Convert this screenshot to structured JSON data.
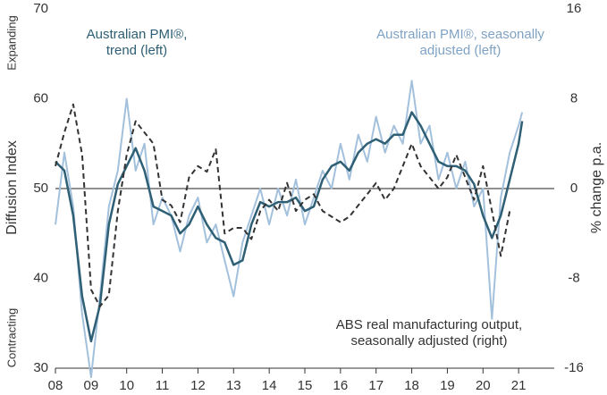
{
  "chart_data": {
    "type": "line",
    "y_label": "Diffusion Index",
    "y2_label": "% change p.a.",
    "annotations": [
      "Expanding",
      "Contracting"
    ],
    "xlim": [
      2008,
      2022
    ],
    "xticks": [
      {
        "value": 2008,
        "label": "08"
      },
      {
        "value": 2009,
        "label": "09"
      },
      {
        "value": 2010,
        "label": "10"
      },
      {
        "value": 2011,
        "label": "11"
      },
      {
        "value": 2012,
        "label": "12"
      },
      {
        "value": 2013,
        "label": "13"
      },
      {
        "value": 2014,
        "label": "14"
      },
      {
        "value": 2015,
        "label": "15"
      },
      {
        "value": 2016,
        "label": "16"
      },
      {
        "value": 2017,
        "label": "17"
      },
      {
        "value": 2018,
        "label": "18"
      },
      {
        "value": 2019,
        "label": "19"
      },
      {
        "value": 2020,
        "label": "20"
      },
      {
        "value": 2021,
        "label": "21"
      }
    ],
    "ylim": [
      30,
      70
    ],
    "yticks": [
      30,
      40,
      50,
      60,
      70
    ],
    "y2lim": [
      -16,
      16
    ],
    "y2ticks": [
      -16,
      -8,
      0,
      8,
      16
    ],
    "reference_line": 50,
    "series": [
      {
        "name": "Australian PMI®, seasonally adjusted (left)",
        "color": "#a3c1dc",
        "axis": "y",
        "x": [
          2008,
          2008.25,
          2008.5,
          2008.75,
          2009,
          2009.25,
          2009.5,
          2009.75,
          2010,
          2010.25,
          2010.5,
          2010.75,
          2011,
          2011.25,
          2011.5,
          2011.75,
          2012,
          2012.25,
          2012.5,
          2012.75,
          2013,
          2013.25,
          2013.5,
          2013.75,
          2014,
          2014.25,
          2014.5,
          2014.75,
          2015,
          2015.25,
          2015.5,
          2015.75,
          2016,
          2016.25,
          2016.5,
          2016.75,
          2017,
          2017.25,
          2017.5,
          2017.75,
          2018,
          2018.25,
          2018.5,
          2018.75,
          2019,
          2019.25,
          2019.5,
          2019.75,
          2020,
          2020.25,
          2020.5,
          2020.75,
          2021,
          2021.1
        ],
        "values": [
          46,
          54,
          48,
          36,
          29,
          38,
          48,
          52,
          60,
          52,
          55,
          46,
          49,
          47,
          43,
          47,
          49,
          44,
          46,
          42,
          38,
          44,
          47,
          50,
          46,
          50,
          47,
          51,
          46,
          49,
          52,
          50,
          55,
          51,
          56,
          53,
          58,
          54,
          57,
          55,
          62,
          55,
          57,
          51,
          54,
          50,
          53,
          48,
          50,
          35.5,
          49,
          54,
          57,
          58.5
        ]
      },
      {
        "name": "Australian PMI®, trend (left)",
        "color": "#2e5f74",
        "axis": "y",
        "x": [
          2008,
          2008.25,
          2008.5,
          2008.75,
          2009,
          2009.25,
          2009.5,
          2009.75,
          2010,
          2010.25,
          2010.5,
          2010.75,
          2011,
          2011.25,
          2011.5,
          2011.75,
          2012,
          2012.25,
          2012.5,
          2012.75,
          2013,
          2013.25,
          2013.5,
          2013.75,
          2014,
          2014.25,
          2014.5,
          2014.75,
          2015,
          2015.25,
          2015.5,
          2015.75,
          2016,
          2016.25,
          2016.5,
          2016.75,
          2017,
          2017.25,
          2017.5,
          2017.75,
          2018,
          2018.25,
          2018.5,
          2018.75,
          2019,
          2019.25,
          2019.5,
          2019.75,
          2020,
          2020.25,
          2020.5,
          2020.75,
          2021,
          2021.1
        ],
        "values": [
          53,
          52,
          47,
          38,
          33,
          37,
          46,
          50.5,
          52.5,
          54.5,
          52,
          48,
          47.5,
          47,
          45,
          46,
          48,
          46,
          44.5,
          44,
          41.5,
          42,
          46,
          48.5,
          48,
          48.5,
          48.5,
          49,
          47.5,
          48,
          51,
          52.5,
          53,
          52,
          54,
          55,
          55.5,
          55,
          56,
          56,
          58.5,
          57,
          55,
          53,
          52.5,
          52.5,
          52,
          50.5,
          47,
          44.5,
          47,
          51,
          55,
          57.5
        ]
      },
      {
        "name": "ABS real manufacturing output, seasonally adjusted (right)",
        "color": "#333333",
        "axis": "y2",
        "dash": true,
        "x": [
          2008,
          2008.25,
          2008.5,
          2008.75,
          2009,
          2009.25,
          2009.5,
          2009.75,
          2010,
          2010.25,
          2010.5,
          2010.75,
          2011,
          2011.25,
          2011.5,
          2011.75,
          2012,
          2012.25,
          2012.5,
          2012.75,
          2013,
          2013.25,
          2013.5,
          2013.75,
          2014,
          2014.25,
          2014.5,
          2014.75,
          2015,
          2015.25,
          2015.5,
          2015.75,
          2016,
          2016.25,
          2016.5,
          2016.75,
          2017,
          2017.25,
          2017.5,
          2017.75,
          2018,
          2018.25,
          2018.5,
          2018.75,
          2019,
          2019.25,
          2019.5,
          2019.75,
          2020,
          2020.25,
          2020.5,
          2020.75
        ],
        "values": [
          2,
          5,
          7.5,
          3,
          -9,
          -10.5,
          -9.5,
          -2,
          3,
          6,
          5,
          4,
          -1,
          -1.5,
          -3,
          1,
          2,
          1.5,
          3.5,
          -4,
          -3.5,
          -3.5,
          -4.5,
          -2,
          -1,
          -2,
          0.5,
          -2,
          -1,
          -0.5,
          -2,
          -2.5,
          -3,
          -2.5,
          -1.5,
          -0.5,
          0.5,
          -1,
          0,
          2,
          4,
          2,
          1,
          0,
          1,
          3,
          1,
          -1,
          2,
          -2,
          -6,
          -2
        ]
      }
    ]
  }
}
